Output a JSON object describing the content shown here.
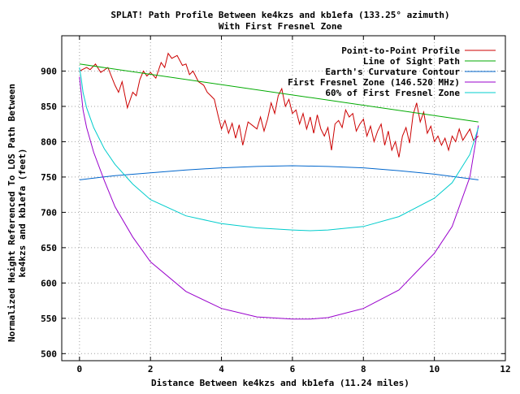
{
  "chart_data": {
    "type": "line",
    "title": "SPLAT! Path Profile Between ke4kzs and kb1efa (133.25° azimuth)",
    "subtitle": "With First Fresnel Zone",
    "xlabel": "Distance Between ke4kzs and kb1efa (11.24 miles)",
    "ylabel_line1": "Normalized Height Referenced To LOS Path Between",
    "ylabel_line2": "ke4kzs and kb1efa (feet)",
    "xlim": [
      -0.5,
      12
    ],
    "ylim": [
      490,
      950
    ],
    "xticks": [
      0,
      2,
      4,
      6,
      8,
      10,
      12
    ],
    "xtick_labels": [
      "0",
      "2",
      "4",
      "6",
      "8",
      "10",
      "12"
    ],
    "yticks": [
      500,
      550,
      600,
      650,
      700,
      750,
      800,
      850,
      900
    ],
    "ytick_labels": [
      "500",
      "550",
      "600",
      "650",
      "700",
      "750",
      "800",
      "850",
      "900"
    ],
    "grid": true,
    "legend_position": "top-right",
    "series": [
      {
        "name": "Point-to-Point Profile",
        "color": "#cc0000",
        "x": [
          0.0,
          0.2,
          0.3,
          0.45,
          0.6,
          0.8,
          1.0,
          1.1,
          1.2,
          1.35,
          1.5,
          1.6,
          1.7,
          1.8,
          1.9,
          2.0,
          2.15,
          2.3,
          2.4,
          2.5,
          2.6,
          2.75,
          2.9,
          3.0,
          3.1,
          3.2,
          3.35,
          3.5,
          3.6,
          3.7,
          3.8,
          3.9,
          4.0,
          4.1,
          4.2,
          4.3,
          4.4,
          4.5,
          4.6,
          4.75,
          4.9,
          5.0,
          5.1,
          5.2,
          5.3,
          5.4,
          5.5,
          5.6,
          5.7,
          5.8,
          5.9,
          6.0,
          6.1,
          6.2,
          6.3,
          6.4,
          6.5,
          6.6,
          6.7,
          6.8,
          6.9,
          7.0,
          7.1,
          7.2,
          7.3,
          7.4,
          7.5,
          7.6,
          7.7,
          7.8,
          7.9,
          8.0,
          8.1,
          8.2,
          8.3,
          8.4,
          8.5,
          8.6,
          8.7,
          8.8,
          8.9,
          9.0,
          9.1,
          9.2,
          9.3,
          9.4,
          9.5,
          9.6,
          9.7,
          9.8,
          9.9,
          10.0,
          10.1,
          10.2,
          10.3,
          10.4,
          10.5,
          10.6,
          10.7,
          10.8,
          10.9,
          11.0,
          11.1,
          11.24
        ],
        "y": [
          900,
          905,
          902,
          910,
          898,
          905,
          880,
          870,
          885,
          848,
          870,
          865,
          888,
          900,
          893,
          898,
          890,
          912,
          905,
          925,
          918,
          922,
          908,
          910,
          895,
          900,
          885,
          880,
          870,
          865,
          860,
          838,
          818,
          830,
          812,
          826,
          805,
          824,
          795,
          828,
          822,
          818,
          835,
          815,
          832,
          855,
          840,
          865,
          875,
          850,
          860,
          840,
          845,
          825,
          840,
          818,
          835,
          812,
          838,
          818,
          808,
          820,
          788,
          825,
          830,
          820,
          845,
          835,
          840,
          815,
          825,
          832,
          808,
          822,
          800,
          815,
          825,
          795,
          815,
          788,
          800,
          778,
          808,
          820,
          798,
          838,
          855,
          828,
          842,
          812,
          822,
          800,
          808,
          795,
          805,
          788,
          808,
          800,
          818,
          802,
          810,
          818,
          802,
          808
        ]
      },
      {
        "name": "Line of Sight Path",
        "color": "#00aa00",
        "x": [
          0.0,
          11.24
        ],
        "y": [
          910,
          828
        ]
      },
      {
        "name": "Earth's Curvature Contour",
        "color": "#0066cc",
        "x": [
          0.0,
          1.0,
          2.0,
          3.0,
          4.0,
          5.0,
          6.0,
          7.0,
          8.0,
          9.0,
          10.0,
          11.24
        ],
        "y": [
          746,
          752,
          756,
          760,
          763,
          765,
          766,
          765,
          763,
          759,
          754,
          746
        ]
      },
      {
        "name": "First Fresnel Zone (146.520 MHz)",
        "color": "#9900cc",
        "x": [
          0.0,
          0.05,
          0.1,
          0.2,
          0.4,
          0.7,
          1.0,
          1.5,
          2.0,
          3.0,
          4.0,
          5.0,
          6.0,
          6.5,
          7.0,
          8.0,
          9.0,
          10.0,
          10.5,
          11.0,
          11.24
        ],
        "y": [
          892,
          869,
          845,
          820,
          785,
          745,
          708,
          665,
          630,
          588,
          564,
          552,
          549,
          549,
          551,
          564,
          590,
          642,
          680,
          750,
          823
        ]
      },
      {
        "name": "60% of First Fresnel Zone",
        "color": "#00cccc",
        "x": [
          0.0,
          0.05,
          0.1,
          0.2,
          0.4,
          0.7,
          1.0,
          1.5,
          2.0,
          3.0,
          4.0,
          5.0,
          6.0,
          6.5,
          7.0,
          8.0,
          9.0,
          10.0,
          10.5,
          11.0,
          11.24
        ],
        "y": [
          905,
          889,
          870,
          848,
          820,
          790,
          768,
          740,
          718,
          695,
          684,
          678,
          675,
          674,
          675,
          680,
          694,
          720,
          742,
          782,
          820
        ]
      }
    ]
  }
}
